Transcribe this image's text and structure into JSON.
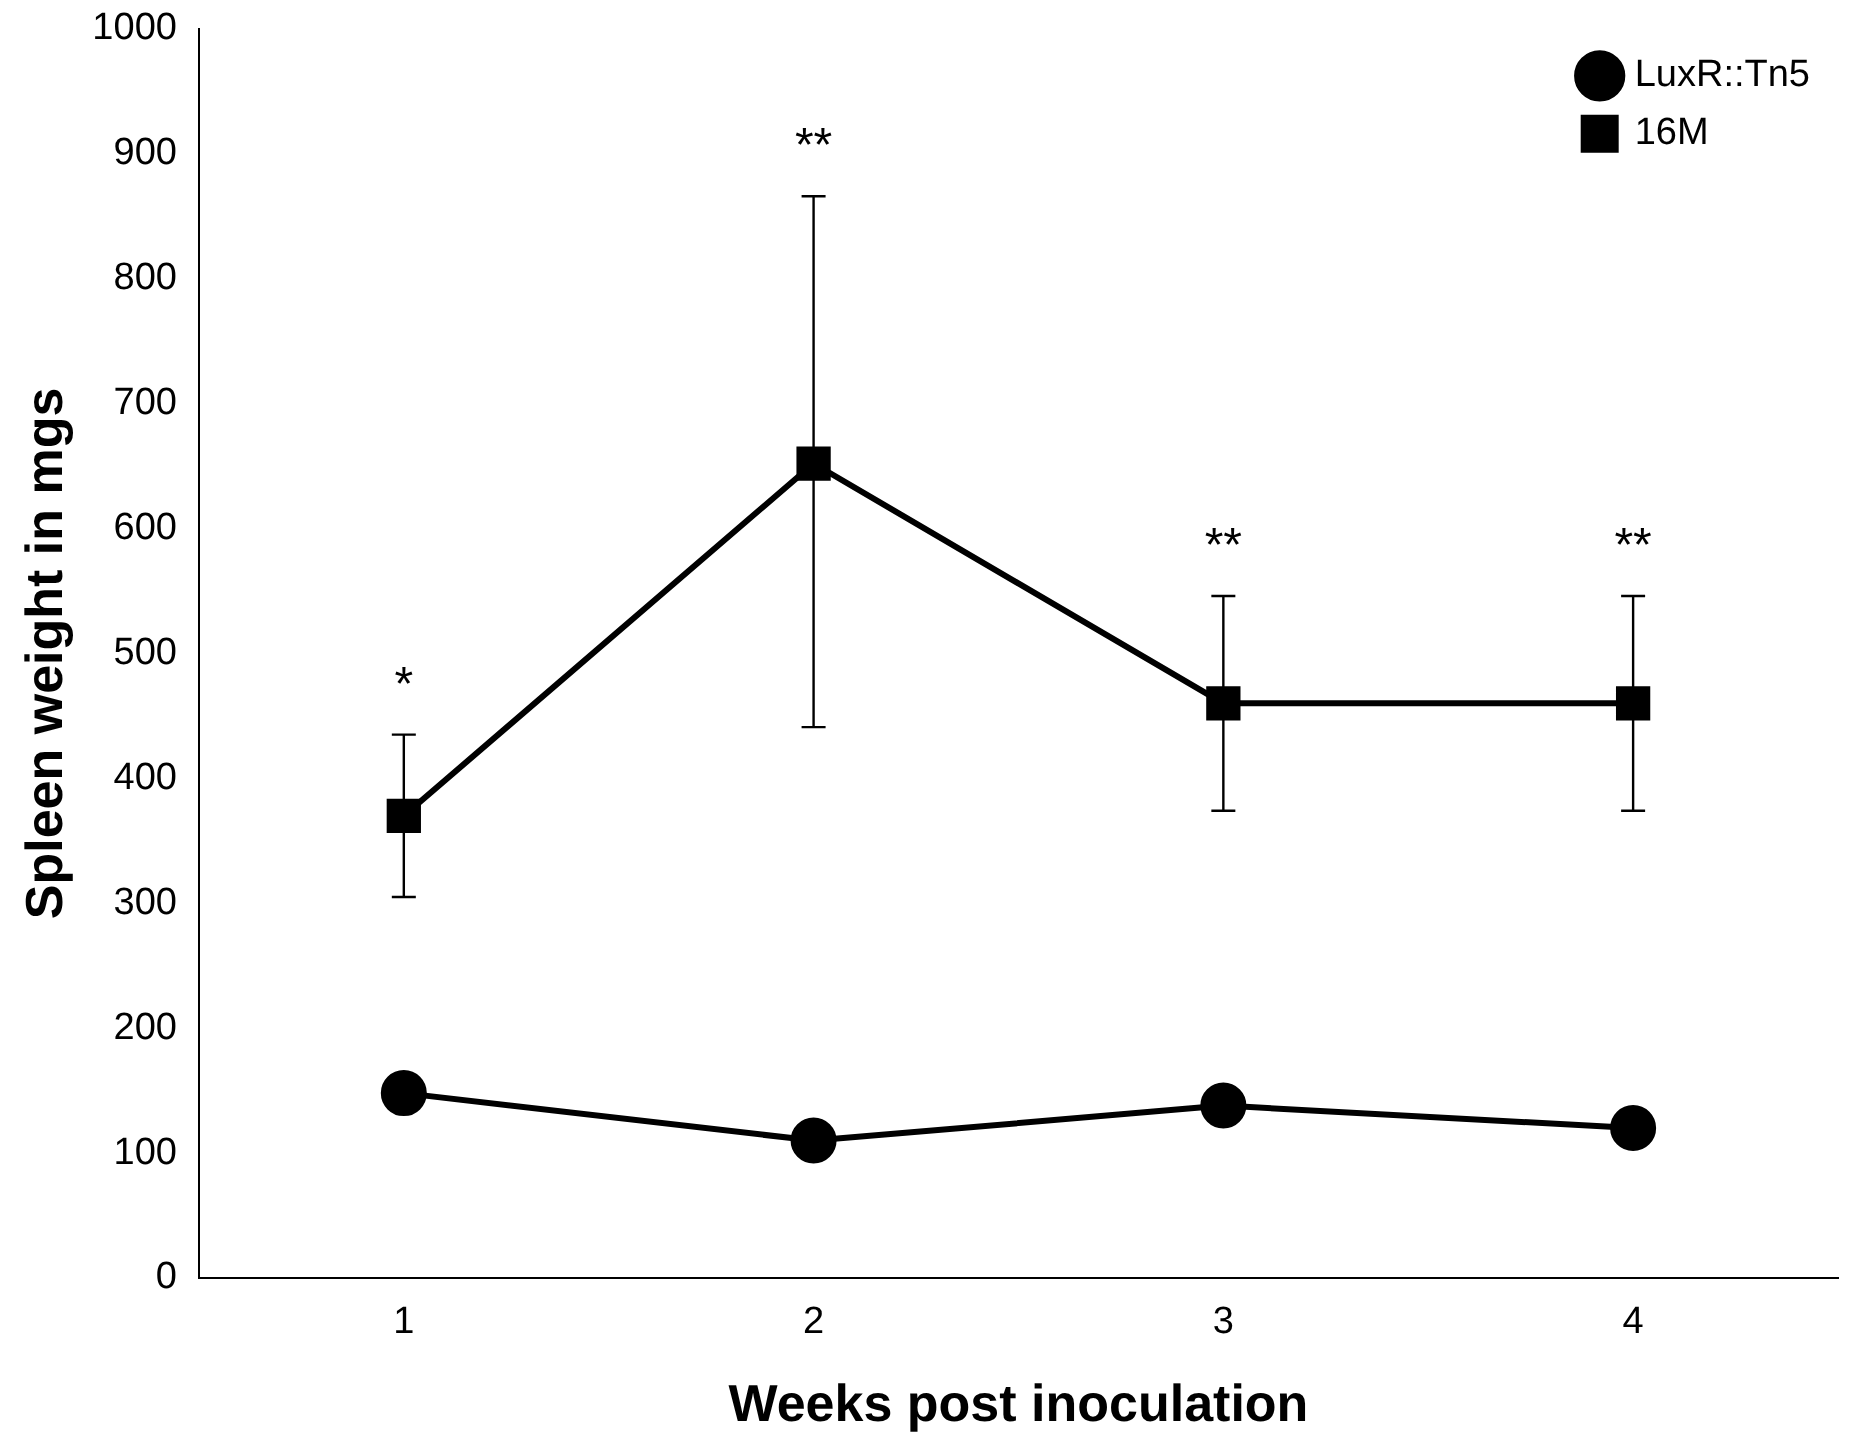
{
  "chart_data": {
    "type": "line",
    "xlabel": "Weeks post inoculation",
    "ylabel": "Spleen weight in mgs",
    "categories": [
      "1",
      "2",
      "3",
      "4"
    ],
    "series": [
      {
        "name": "LuxR::Tn5",
        "color": "#000000",
        "marker": "circle",
        "values": [
          148,
          110,
          138,
          120
        ]
      },
      {
        "name": "16M",
        "color": "#000000",
        "marker": "square",
        "values": [
          370,
          652,
          460,
          460
        ],
        "errors": [
          [
            305,
            435
          ],
          [
            441,
            866
          ],
          [
            374,
            546
          ],
          [
            374,
            546
          ]
        ]
      }
    ],
    "ylim": [
      0,
      1000
    ],
    "yticks": [
      0,
      100,
      200,
      300,
      400,
      500,
      600,
      700,
      800,
      900,
      1000
    ],
    "grid": false,
    "legend": "top right",
    "line_style": "solid",
    "annotations": [
      "*",
      "**",
      "**",
      "**"
    ]
  }
}
